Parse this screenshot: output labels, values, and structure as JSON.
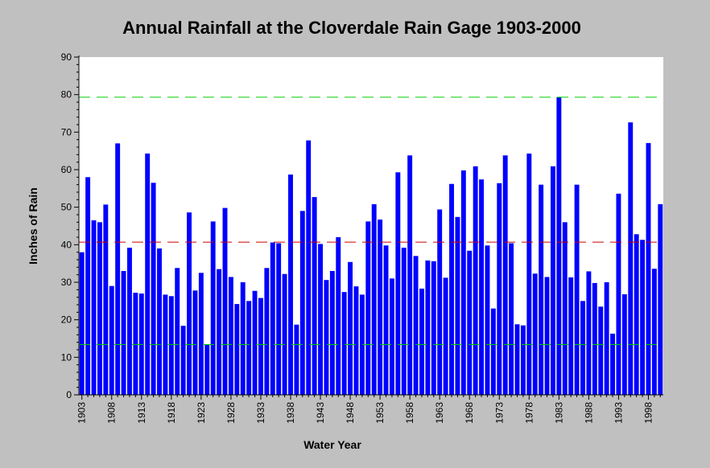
{
  "chart_data": {
    "type": "bar",
    "title": "Annual Rainfall at the Cloverdale Rain Gage 1903-2000",
    "xlabel": "Water Year",
    "ylabel": "Inches of Rain",
    "ylim": [
      0,
      90
    ],
    "yticks": [
      0,
      10,
      20,
      30,
      40,
      50,
      60,
      70,
      80,
      90
    ],
    "xtick_labels": [
      "1903",
      "1908",
      "1913",
      "1918",
      "1923",
      "1928",
      "1933",
      "1938",
      "1943",
      "1948",
      "1953",
      "1958",
      "1963",
      "1968",
      "1973",
      "1978",
      "1983",
      "1988",
      "1993",
      "1998"
    ],
    "grid": false,
    "bar_color": "#0000ff",
    "x": [
      1903,
      1904,
      1905,
      1906,
      1907,
      1908,
      1909,
      1910,
      1911,
      1912,
      1913,
      1914,
      1915,
      1916,
      1917,
      1918,
      1919,
      1920,
      1921,
      1922,
      1923,
      1924,
      1925,
      1926,
      1927,
      1928,
      1929,
      1930,
      1931,
      1932,
      1933,
      1934,
      1935,
      1936,
      1937,
      1938,
      1939,
      1940,
      1941,
      1942,
      1943,
      1944,
      1945,
      1946,
      1947,
      1948,
      1949,
      1950,
      1951,
      1952,
      1953,
      1954,
      1955,
      1956,
      1957,
      1958,
      1959,
      1960,
      1961,
      1962,
      1963,
      1964,
      1965,
      1966,
      1967,
      1968,
      1969,
      1970,
      1971,
      1972,
      1973,
      1974,
      1975,
      1976,
      1977,
      1978,
      1979,
      1980,
      1981,
      1982,
      1983,
      1984,
      1985,
      1986,
      1987,
      1988,
      1989,
      1990,
      1991,
      1992,
      1993,
      1994,
      1995,
      1996,
      1997,
      1998,
      1999,
      2000
    ],
    "values": [
      38,
      58,
      46.5,
      46,
      50.7,
      29,
      67,
      33,
      39.2,
      27.2,
      27,
      64.3,
      56.5,
      39,
      26.7,
      26.3,
      33.8,
      18.4,
      48.6,
      27.8,
      32.5,
      13.5,
      46.2,
      33.5,
      49.8,
      31.4,
      24.2,
      30,
      25,
      27.7,
      25.8,
      33.8,
      40.6,
      40.4,
      32.2,
      58.7,
      18.7,
      49,
      67.8,
      52.7,
      40.2,
      30.6,
      33,
      42,
      27.4,
      35.4,
      28.9,
      26.7,
      46.2,
      50.8,
      46.7,
      39.8,
      31,
      59.3,
      39.2,
      63.8,
      37,
      28.3,
      35.8,
      35.6,
      49.4,
      31.2,
      56.2,
      47.4,
      59.8,
      38.4,
      60.9,
      57.4,
      39.8,
      23,
      56.4,
      63.8,
      40.4,
      18.8,
      18.5,
      64.3,
      32.3,
      56,
      31.4,
      60.9,
      79.3,
      46,
      31.3,
      56,
      25,
      32.9,
      29.8,
      23.5,
      30,
      16.3,
      53.6,
      26.8,
      72.6,
      42.8,
      41.3,
      67.1,
      33.6,
      50.8
    ],
    "reference_lines": [
      {
        "value": 79.3,
        "color": "#00cc00",
        "style": "dashed"
      },
      {
        "value": 40.7,
        "color": "#cc0000",
        "style": "dashed"
      },
      {
        "value": 13.4,
        "color": "#00cc00",
        "style": "dashed"
      }
    ]
  }
}
